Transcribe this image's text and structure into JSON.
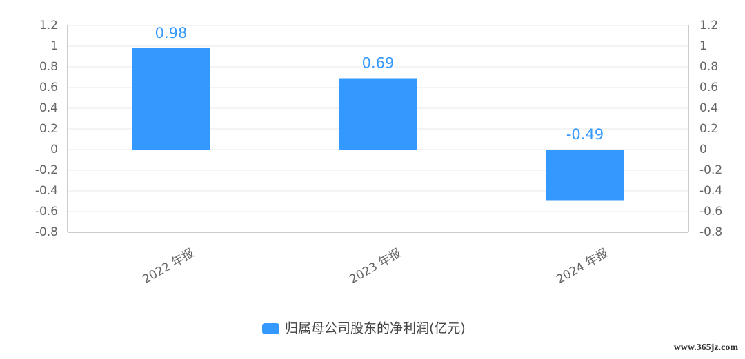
{
  "chart_data": {
    "type": "bar",
    "categories": [
      "2022 年报",
      "2023 年报",
      "2024 年报"
    ],
    "series": [
      {
        "name": "归属母公司股东的净利润(亿元)",
        "color": "#3399ff",
        "values": [
          0.98,
          0.69,
          -0.49
        ]
      }
    ],
    "ylim": [
      -0.8,
      1.2
    ],
    "yticks": [
      -0.8,
      -0.6,
      -0.4,
      -0.2,
      0,
      0.2,
      0.4,
      0.6,
      0.8,
      1,
      1.2
    ],
    "grid": true,
    "legend": "bottom",
    "watermark": "www.365jz.com"
  }
}
